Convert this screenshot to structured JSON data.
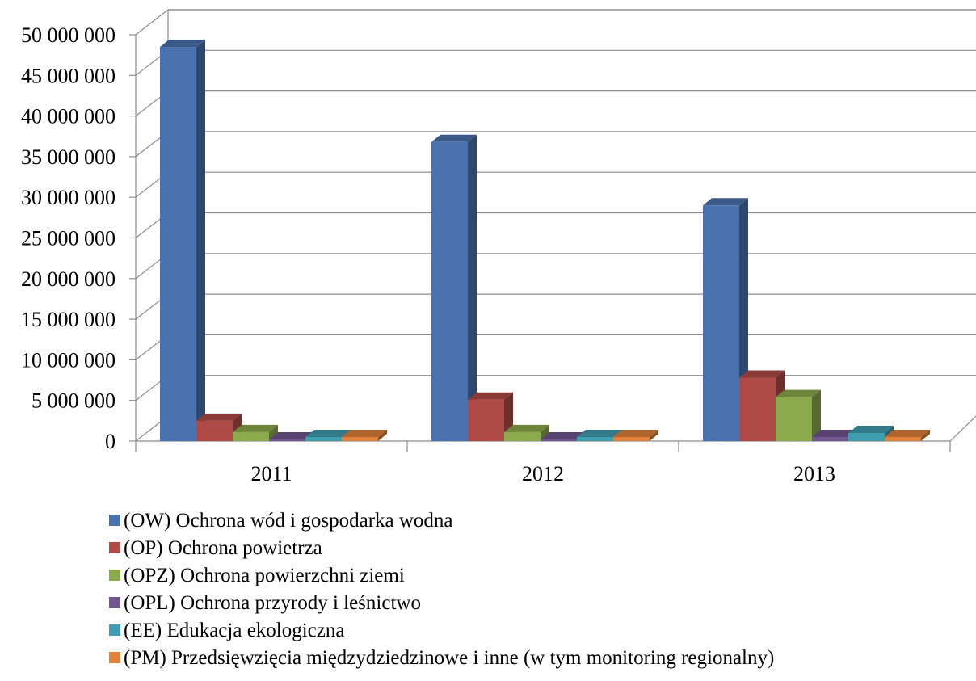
{
  "chart_data": {
    "type": "bar",
    "style": "3d-clustered-column",
    "categories": [
      "2011",
      "2012",
      "2013"
    ],
    "ylim": [
      0,
      50000000
    ],
    "y_ticks": [
      0,
      5000000,
      10000000,
      15000000,
      20000000,
      25000000,
      30000000,
      35000000,
      40000000,
      45000000,
      50000000
    ],
    "y_tick_labels": [
      "0",
      "5 000 000",
      "10 000 000",
      "15 000 000",
      "20 000 000",
      "25 000 000",
      "30 000 000",
      "35 000 000",
      "40 000 000",
      "45 000 000",
      "50 000 000"
    ],
    "grid": true,
    "legend_position": "bottom",
    "series": [
      {
        "name": "(OW)  Ochrona wód i gospodarka wodna",
        "color": "#4A72AE",
        "values": [
          48500000,
          36800000,
          29000000
        ]
      },
      {
        "name": "(OP)   Ochrona powietrza",
        "color": "#B04A47",
        "values": [
          2500000,
          5100000,
          7800000
        ]
      },
      {
        "name": "(OPZ) Ochrona powierzchni ziemi",
        "color": "#8BAA4B",
        "values": [
          1100000,
          1100000,
          5400000
        ]
      },
      {
        "name": "(OPL) Ochrona przyrody i leśnictwo",
        "color": "#71568F",
        "values": [
          200000,
          200000,
          500000
        ]
      },
      {
        "name": "(EE)    Edukacja ekologiczna",
        "color": "#3F9DAF",
        "values": [
          500000,
          500000,
          1000000
        ]
      },
      {
        "name": "(PM)  Przedsięwzięcia międzydziedzinowe i inne  (w tym monitoring regionalny)",
        "color": "#E1823A",
        "values": [
          500000,
          500000,
          500000
        ]
      }
    ]
  }
}
